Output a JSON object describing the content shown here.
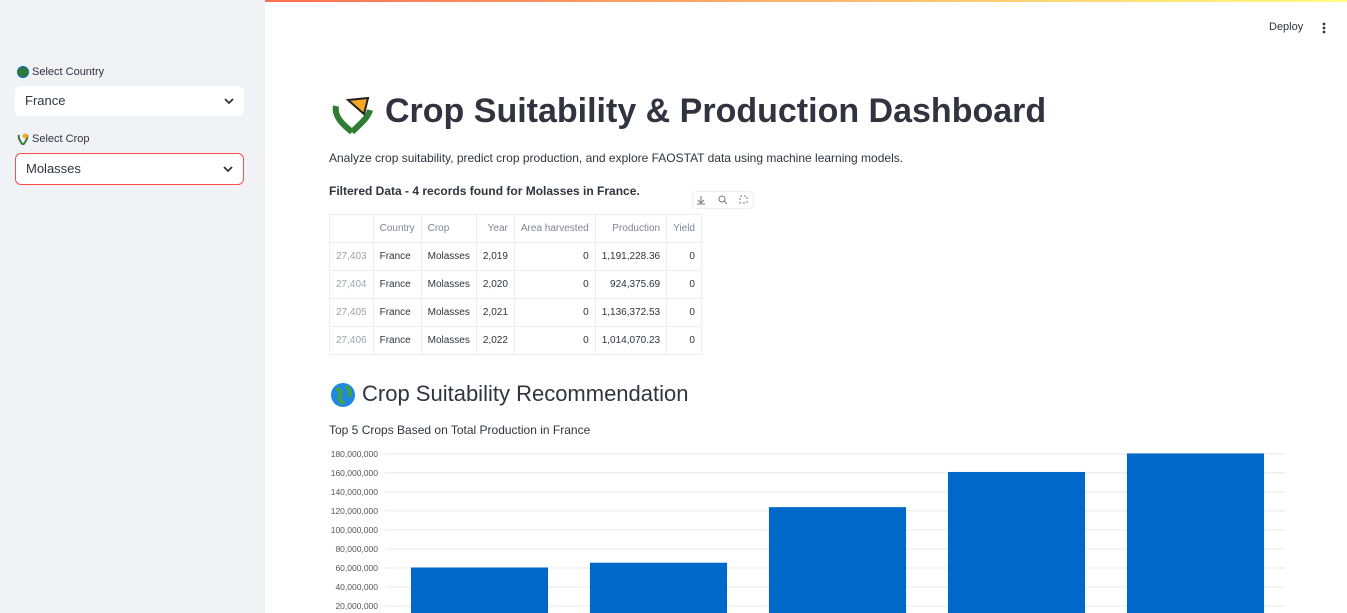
{
  "sidebar": {
    "country_label": "Select Country",
    "country_value": "France",
    "crop_label": "Select Crop",
    "crop_value": "Molasses"
  },
  "toolbar": {
    "deploy": "Deploy"
  },
  "header": {
    "title": "Crop Suitability & Production Dashboard",
    "description": "Analyze crop suitability, predict crop production, and explore FAOSTAT data using machine learning models."
  },
  "table": {
    "caption": "Filtered Data - 4 records found for Molasses in France.",
    "columns": [
      "Country",
      "Crop",
      "Year",
      "Area harvested",
      "Production",
      "Yield"
    ],
    "rows": [
      [
        "27,403",
        "France",
        "Molasses",
        "2,019",
        "0",
        "1,191,228.36",
        "0"
      ],
      [
        "27,404",
        "France",
        "Molasses",
        "2,020",
        "0",
        "924,375.69",
        "0"
      ],
      [
        "27,405",
        "France",
        "Molasses",
        "2,021",
        "0",
        "1,136,372.53",
        "0"
      ],
      [
        "27,406",
        "France",
        "Molasses",
        "2,022",
        "0",
        "1,014,070.23",
        "0"
      ]
    ]
  },
  "section": {
    "title": "Crop Suitability Recommendation"
  },
  "chart_data": {
    "type": "bar",
    "title": "Top 5 Crops Based on Total Production in France",
    "categories": [
      null,
      null,
      null,
      null,
      null
    ],
    "values": [
      60500000,
      65500000,
      124000000,
      161000000,
      180500000
    ],
    "color": "#0068c9",
    "ylim": [
      0,
      182000000
    ],
    "yticks": [
      {
        "value": 20000000,
        "label": "20,000,000"
      },
      {
        "value": 40000000,
        "label": "40,000,000"
      },
      {
        "value": 60000000,
        "label": "60,000,000"
      },
      {
        "value": 80000000,
        "label": "80,000,000"
      },
      {
        "value": 100000000,
        "label": "100,000,000"
      },
      {
        "value": 120000000,
        "label": "120,000,000"
      },
      {
        "value": 140000000,
        "label": "140,000,000"
      },
      {
        "value": 160000000,
        "label": "160,000,000"
      },
      {
        "value": 180000000,
        "label": "180,000,000"
      }
    ],
    "grid": true
  }
}
